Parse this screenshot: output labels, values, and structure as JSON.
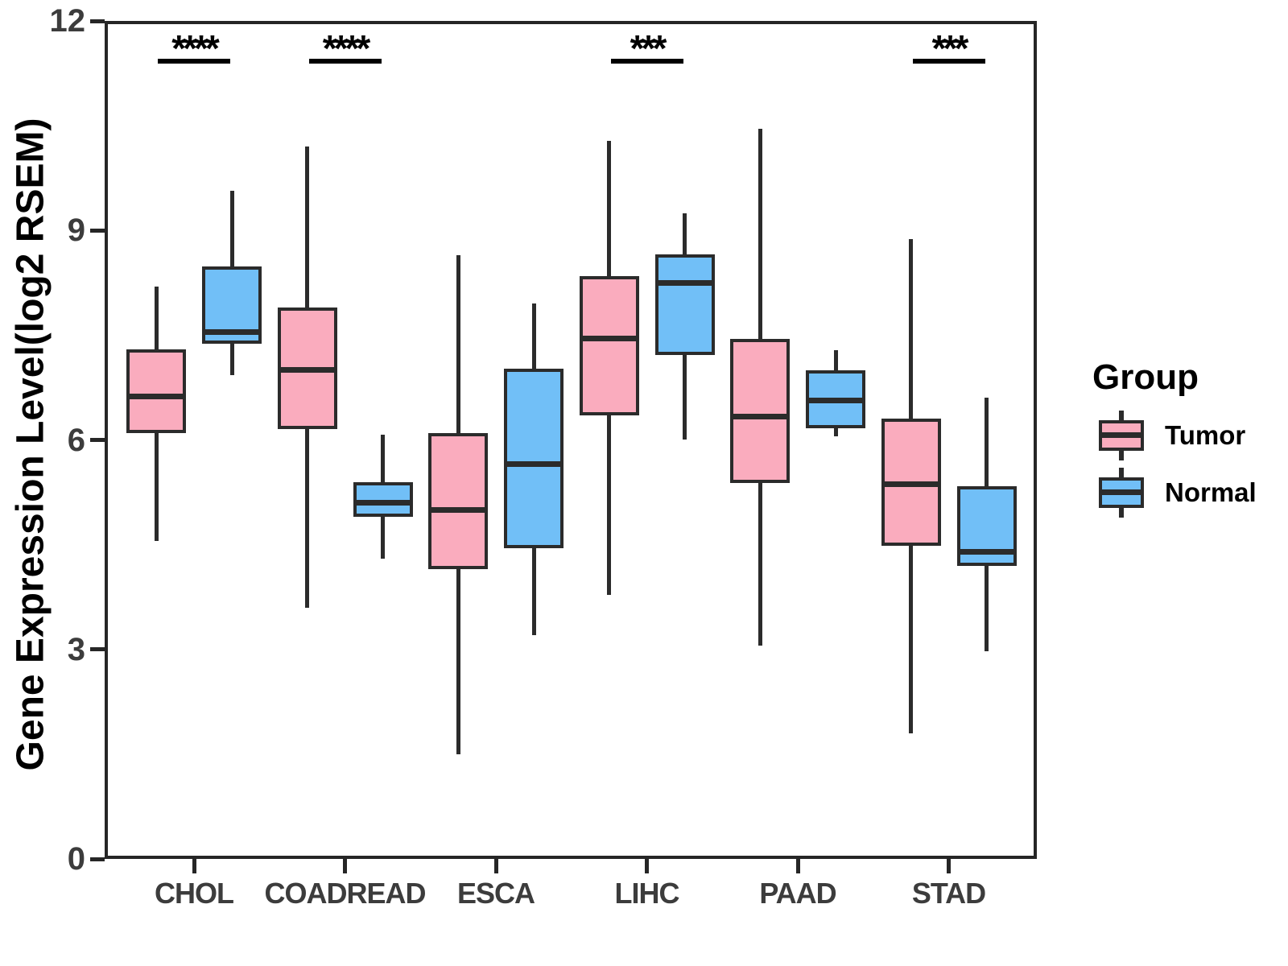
{
  "chart_data": {
    "type": "grouped_boxplot",
    "title": "",
    "xlabel": "",
    "ylabel": "Gene Expression Level(log2 RSEM)",
    "ylim": [
      0,
      12
    ],
    "yticks": [
      0,
      3,
      6,
      9,
      12
    ],
    "grid": "off",
    "categories": [
      "CHOL",
      "COADREAD",
      "ESCA",
      "LIHC",
      "PAAD",
      "STAD"
    ],
    "series": [
      {
        "name": "Tumor",
        "color": "#FAACBE",
        "boxes": [
          {
            "whisker_low": 4.55,
            "q1": 6.1,
            "median": 6.62,
            "q3": 7.3,
            "whisker_high": 8.2
          },
          {
            "whisker_low": 3.6,
            "q1": 6.15,
            "median": 7.0,
            "q3": 7.9,
            "whisker_high": 10.2
          },
          {
            "whisker_low": 1.5,
            "q1": 4.15,
            "median": 5.0,
            "q3": 6.1,
            "whisker_high": 8.65
          },
          {
            "whisker_low": 3.78,
            "q1": 6.35,
            "median": 7.45,
            "q3": 8.35,
            "whisker_high": 10.28
          },
          {
            "whisker_low": 3.05,
            "q1": 5.38,
            "median": 6.33,
            "q3": 7.45,
            "whisker_high": 10.45
          },
          {
            "whisker_low": 1.8,
            "q1": 4.48,
            "median": 5.37,
            "q3": 6.3,
            "whisker_high": 8.88
          }
        ]
      },
      {
        "name": "Normal",
        "color": "#71BFF7",
        "boxes": [
          {
            "whisker_low": 6.93,
            "q1": 7.38,
            "median": 7.55,
            "q3": 8.48,
            "whisker_high": 9.57
          },
          {
            "whisker_low": 4.3,
            "q1": 4.9,
            "median": 5.1,
            "q3": 5.4,
            "whisker_high": 6.08
          },
          {
            "whisker_low": 3.2,
            "q1": 4.45,
            "median": 5.65,
            "q3": 7.02,
            "whisker_high": 7.95
          },
          {
            "whisker_low": 6.0,
            "q1": 7.22,
            "median": 8.25,
            "q3": 8.66,
            "whisker_high": 9.25
          },
          {
            "whisker_low": 6.05,
            "q1": 6.17,
            "median": 6.56,
            "q3": 7.0,
            "whisker_high": 7.28
          },
          {
            "whisker_low": 2.97,
            "q1": 4.2,
            "median": 4.4,
            "q3": 5.34,
            "whisker_high": 6.6
          }
        ]
      }
    ],
    "significance": [
      {
        "category": "CHOL",
        "label": "****"
      },
      {
        "category": "COADREAD",
        "label": "****"
      },
      {
        "category": "LIHC",
        "label": "***"
      },
      {
        "category": "STAD",
        "label": "***"
      }
    ],
    "legend": {
      "title": "Group",
      "position": "right",
      "items": [
        {
          "label": "Tumor",
          "color": "#FAACBE"
        },
        {
          "label": "Normal",
          "color": "#71BFF7"
        }
      ]
    },
    "style": {
      "background": "#FFFFFF",
      "box_border_color": "#2B2B2B",
      "panel_border_color": "#262626",
      "tick_label_color": "#3C3C3C",
      "annotation_color": "#000000"
    }
  }
}
